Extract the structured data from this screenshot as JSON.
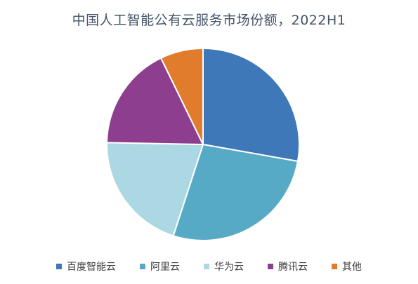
{
  "chart_data": {
    "type": "pie",
    "title": "中国人工智能公有云服务市场份额，2022H1",
    "categories": [
      "百度智能云",
      "阿里云",
      "华为云",
      "腾讯云",
      "其他"
    ],
    "values": [
      27.8,
      27.2,
      20.3,
      17.5,
      7.2
    ],
    "colors": [
      "#3e78b8",
      "#57aac6",
      "#abd8e3",
      "#8e3e8e",
      "#e07c2c"
    ],
    "legend_position": "bottom",
    "start_angle": "12 o'clock, clockwise"
  }
}
